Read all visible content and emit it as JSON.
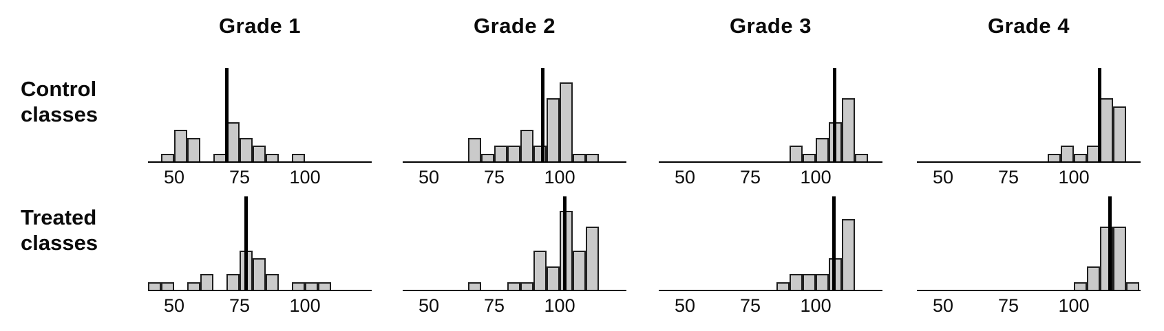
{
  "chart_data": {
    "type": "histogram-grid",
    "title": "",
    "columns": [
      "Grade 1",
      "Grade 2",
      "Grade 3",
      "Grade 4"
    ],
    "rows": [
      "Control classes",
      "Treated classes"
    ],
    "x_ticks": [
      {
        "value": 50,
        "label": "50"
      },
      {
        "value": 75,
        "label": "75"
      },
      {
        "value": 100,
        "label": "100"
      }
    ],
    "xlim": [
      40,
      125.5
    ],
    "ylim_counts": [
      0,
      12
    ],
    "bin_width": 5,
    "bins_format": "[bin_start_score, class_count]",
    "mean_line_meaning": "vertical black line at group mean score",
    "grid": false,
    "legend": false,
    "panels": [
      {
        "row": "Control classes",
        "column": "Grade 1",
        "mean": 70.1,
        "bins": [
          [
            45,
            1
          ],
          [
            50,
            4
          ],
          [
            55,
            3
          ],
          [
            65,
            1
          ],
          [
            70,
            5
          ],
          [
            75,
            3
          ],
          [
            80,
            2
          ],
          [
            85,
            1
          ],
          [
            95,
            1
          ]
        ]
      },
      {
        "row": "Control classes",
        "column": "Grade 2",
        "mean": 93.5,
        "bins": [
          [
            65,
            3
          ],
          [
            70,
            1
          ],
          [
            75,
            2
          ],
          [
            80,
            2
          ],
          [
            85,
            4
          ],
          [
            90,
            2
          ],
          [
            95,
            8
          ],
          [
            100,
            10
          ],
          [
            105,
            1
          ],
          [
            110,
            1
          ]
        ]
      },
      {
        "row": "Control classes",
        "column": "Grade 3",
        "mean": 107.2,
        "bins": [
          [
            90,
            2
          ],
          [
            95,
            1
          ],
          [
            100,
            3
          ],
          [
            105,
            5
          ],
          [
            110,
            8
          ],
          [
            115,
            1
          ]
        ]
      },
      {
        "row": "Control classes",
        "column": "Grade 4",
        "mean": 109.8,
        "bins": [
          [
            90,
            1
          ],
          [
            95,
            2
          ],
          [
            100,
            1
          ],
          [
            105,
            2
          ],
          [
            110,
            8
          ],
          [
            115,
            7
          ]
        ]
      },
      {
        "row": "Treated classes",
        "column": "Grade 1",
        "mean": 77.5,
        "bins": [
          [
            40,
            1
          ],
          [
            45,
            1
          ],
          [
            55,
            1
          ],
          [
            60,
            2
          ],
          [
            70,
            2
          ],
          [
            75,
            5
          ],
          [
            80,
            4
          ],
          [
            85,
            2
          ],
          [
            95,
            1
          ],
          [
            100,
            1
          ],
          [
            105,
            1
          ]
        ]
      },
      {
        "row": "Treated classes",
        "column": "Grade 2",
        "mean": 102.0,
        "bins": [
          [
            65,
            1
          ],
          [
            80,
            1
          ],
          [
            85,
            1
          ],
          [
            90,
            5
          ],
          [
            95,
            3
          ],
          [
            100,
            10
          ],
          [
            105,
            5
          ],
          [
            110,
            8
          ]
        ]
      },
      {
        "row": "Treated classes",
        "column": "Grade 3",
        "mean": 107.0,
        "bins": [
          [
            85,
            1
          ],
          [
            90,
            2
          ],
          [
            95,
            2
          ],
          [
            100,
            2
          ],
          [
            105,
            4
          ],
          [
            110,
            9
          ]
        ]
      },
      {
        "row": "Treated classes",
        "column": "Grade 4",
        "mean": 113.8,
        "bins": [
          [
            100,
            1
          ],
          [
            105,
            3
          ],
          [
            110,
            8
          ],
          [
            115,
            8
          ],
          [
            120,
            1
          ]
        ]
      }
    ],
    "colors": {
      "bar_fill": "#cacaca",
      "bar_border": "#1f1f1f",
      "mean_line": "#000000",
      "axis_line": "#000000",
      "text": "#0a0a0a",
      "background": "#ffffff"
    }
  }
}
